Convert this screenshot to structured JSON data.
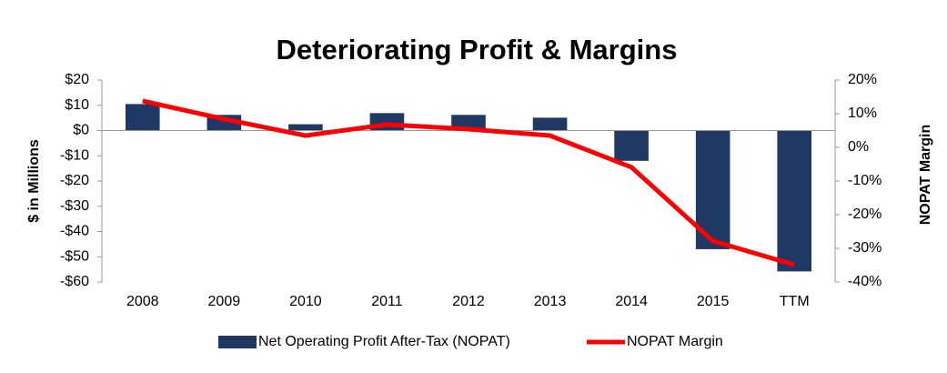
{
  "chart_data": {
    "type": "bar-line",
    "title": "Deteriorating Profit & Margins",
    "ylabel": "$ in Millions",
    "y2label": "NOPAT Margin",
    "categories": [
      "2008",
      "2009",
      "2010",
      "2011",
      "2012",
      "2013",
      "2014",
      "2015",
      "TTM"
    ],
    "series": [
      {
        "name": "Net Operating Profit After-Tax (NOPAT)",
        "type": "bar",
        "color": "#1f3864",
        "values": [
          10.5,
          6.2,
          2.5,
          6.9,
          6.2,
          5.1,
          -12,
          -47,
          -55.8
        ]
      },
      {
        "name": "NOPAT Margin",
        "type": "line",
        "color": "#ff0000",
        "axis": "y2",
        "values": [
          13.8,
          8.4,
          3.5,
          6.8,
          5.4,
          3.5,
          -5.9,
          -27.8,
          -34.9
        ]
      }
    ],
    "ylim": [
      -60,
      20
    ],
    "yticks": [
      {
        "value": 20,
        "label": "$20"
      },
      {
        "value": 10,
        "label": "$10"
      },
      {
        "value": 0,
        "label": "$0"
      },
      {
        "value": -10,
        "label": "-$10"
      },
      {
        "value": -20,
        "label": "-$20"
      },
      {
        "value": -30,
        "label": "-$30"
      },
      {
        "value": -40,
        "label": "-$40"
      },
      {
        "value": -50,
        "label": "-$50"
      },
      {
        "value": -60,
        "label": "-$60"
      }
    ],
    "y2lim": [
      -40,
      20
    ],
    "y2ticks": [
      {
        "value": 20,
        "label": "20%"
      },
      {
        "value": 10,
        "label": "10%"
      },
      {
        "value": 0,
        "label": "0%"
      },
      {
        "value": -10,
        "label": "-10%"
      },
      {
        "value": -20,
        "label": "-20%"
      },
      {
        "value": -30,
        "label": "-30%"
      },
      {
        "value": -40,
        "label": "-40%"
      }
    ]
  }
}
